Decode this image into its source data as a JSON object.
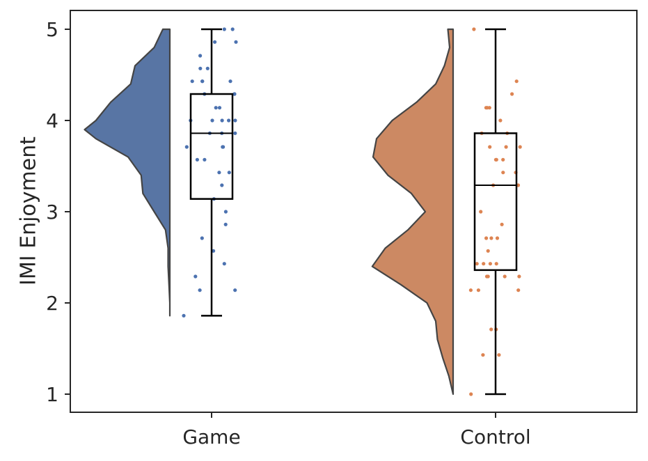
{
  "chart_data": {
    "type": "raincloud",
    "ylabel": "IMI Enjoyment",
    "xlabel": "",
    "categories": [
      "Game",
      "Control"
    ],
    "ylim": [
      0.8,
      5.2
    ],
    "yticks": [
      1,
      2,
      3,
      4,
      5
    ],
    "grid": false,
    "legend": "none",
    "groups": [
      {
        "name": "Game",
        "color": "#5875a4",
        "point_color": "#4c72b0",
        "box": {
          "whisker_low": 1.86,
          "q1": 3.14,
          "median": 3.86,
          "q3": 4.29,
          "whisker_high": 5.0
        },
        "density": [
          [
            1.86,
            0.0
          ],
          [
            2.0,
            0.0
          ],
          [
            2.2,
            0.01
          ],
          [
            2.4,
            0.02
          ],
          [
            2.6,
            0.02
          ],
          [
            2.8,
            0.05
          ],
          [
            3.0,
            0.18
          ],
          [
            3.2,
            0.31
          ],
          [
            3.4,
            0.33
          ],
          [
            3.6,
            0.48
          ],
          [
            3.8,
            0.85
          ],
          [
            3.9,
            0.98
          ],
          [
            4.0,
            0.85
          ],
          [
            4.2,
            0.68
          ],
          [
            4.4,
            0.45
          ],
          [
            4.6,
            0.4
          ],
          [
            4.8,
            0.18
          ],
          [
            5.0,
            0.08
          ]
        ],
        "points": [
          1.86,
          2.14,
          2.14,
          2.29,
          2.43,
          2.57,
          2.71,
          2.86,
          3.0,
          3.14,
          3.29,
          3.43,
          3.43,
          3.57,
          3.57,
          3.71,
          3.71,
          3.71,
          3.86,
          3.86,
          3.86,
          4.0,
          4.0,
          4.0,
          4.0,
          4.0,
          4.14,
          4.14,
          4.29,
          4.29,
          4.29,
          4.43,
          4.43,
          4.43,
          4.43,
          4.57,
          4.57,
          4.71,
          4.86,
          4.86,
          5.0,
          5.0
        ]
      },
      {
        "name": "Control",
        "color": "#cc8963",
        "point_color": "#dd8452",
        "box": {
          "whisker_low": 1.0,
          "q1": 2.36,
          "median": 3.29,
          "q3": 3.86,
          "whisker_high": 5.0
        },
        "density": [
          [
            1.0,
            0.0
          ],
          [
            1.2,
            0.05
          ],
          [
            1.4,
            0.12
          ],
          [
            1.6,
            0.18
          ],
          [
            1.8,
            0.2
          ],
          [
            2.0,
            0.3
          ],
          [
            2.2,
            0.6
          ],
          [
            2.4,
            0.93
          ],
          [
            2.6,
            0.78
          ],
          [
            2.8,
            0.52
          ],
          [
            3.0,
            0.32
          ],
          [
            3.2,
            0.48
          ],
          [
            3.4,
            0.75
          ],
          [
            3.6,
            0.92
          ],
          [
            3.8,
            0.88
          ],
          [
            4.0,
            0.7
          ],
          [
            4.2,
            0.42
          ],
          [
            4.4,
            0.2
          ],
          [
            4.6,
            0.1
          ],
          [
            4.8,
            0.04
          ],
          [
            5.0,
            0.06
          ]
        ],
        "points": [
          1.0,
          1.43,
          1.43,
          1.71,
          1.71,
          2.14,
          2.14,
          2.14,
          2.29,
          2.29,
          2.29,
          2.29,
          2.43,
          2.43,
          2.43,
          2.43,
          2.57,
          2.71,
          2.71,
          2.71,
          2.86,
          3.0,
          3.29,
          3.29,
          3.43,
          3.43,
          3.57,
          3.57,
          3.57,
          3.71,
          3.71,
          3.71,
          3.86,
          3.86,
          4.0,
          4.14,
          4.14,
          4.14,
          4.29,
          4.43,
          5.0
        ]
      }
    ]
  }
}
